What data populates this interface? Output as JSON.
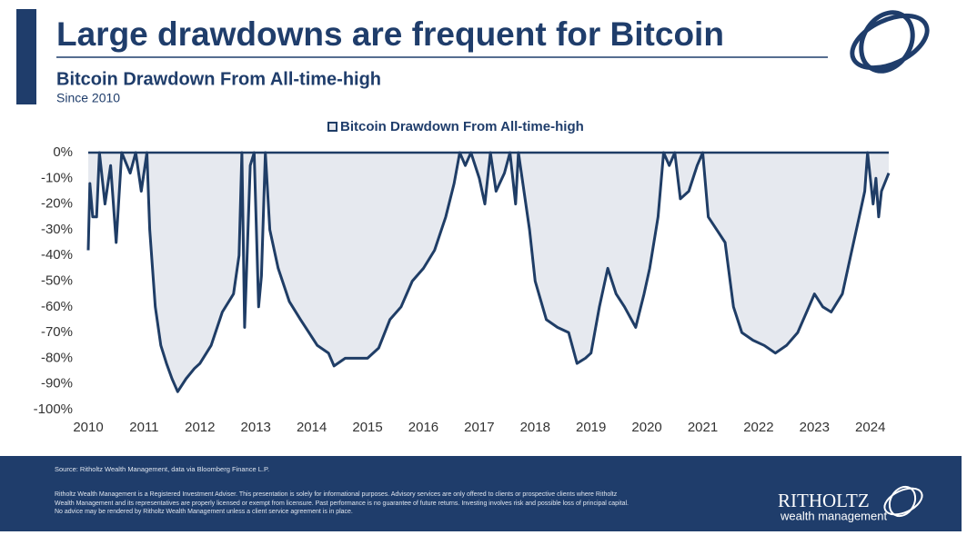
{
  "chart_data": {
    "type": "area",
    "title": "Large drawdowns are frequent for Bitcoin",
    "subtitle": "Bitcoin Drawdown From All-time-high",
    "note": "Since 2010",
    "xlim": [
      2010,
      2024.33
    ],
    "xticks": [
      2010,
      2011,
      2012,
      2013,
      2014,
      2015,
      2016,
      2017,
      2018,
      2019,
      2020,
      2021,
      2022,
      2023,
      2024
    ],
    "ylim": [
      -100,
      0
    ],
    "yticks": [
      {
        "value": 0,
        "label": "0%"
      },
      {
        "value": -10,
        "label": "-10%"
      },
      {
        "value": -20,
        "label": "-20%"
      },
      {
        "value": -30,
        "label": "-30%"
      },
      {
        "value": -40,
        "label": "-40%"
      },
      {
        "value": -50,
        "label": "-50%"
      },
      {
        "value": -60,
        "label": "-60%"
      },
      {
        "value": -70,
        "label": "-70%"
      },
      {
        "value": -80,
        "label": "-80%"
      },
      {
        "value": -90,
        "label": "-90%"
      },
      {
        "value": -100,
        "label": "-100%"
      }
    ],
    "grid": false,
    "legend": "top",
    "x": [
      2010.0,
      2010.03,
      2010.08,
      2010.15,
      2010.2,
      2010.3,
      2010.4,
      2010.5,
      2010.6,
      2010.75,
      2010.85,
      2010.95,
      2011.05,
      2011.1,
      2011.2,
      2011.3,
      2011.4,
      2011.5,
      2011.6,
      2011.75,
      2011.9,
      2012.0,
      2012.2,
      2012.4,
      2012.6,
      2012.7,
      2012.75,
      2012.8,
      2012.9,
      2012.97,
      2013.05,
      2013.1,
      2013.17,
      2013.25,
      2013.4,
      2013.6,
      2013.8,
      2013.95,
      2014.1,
      2014.3,
      2014.4,
      2014.6,
      2014.8,
      2015.0,
      2015.2,
      2015.4,
      2015.6,
      2015.8,
      2016.0,
      2016.2,
      2016.4,
      2016.55,
      2016.65,
      2016.75,
      2016.85,
      2017.0,
      2017.1,
      2017.2,
      2017.3,
      2017.45,
      2017.55,
      2017.65,
      2017.7,
      2017.9,
      2018.0,
      2018.2,
      2018.4,
      2018.6,
      2018.75,
      2018.9,
      2019.0,
      2019.15,
      2019.3,
      2019.45,
      2019.6,
      2019.8,
      2019.95,
      2020.05,
      2020.2,
      2020.3,
      2020.4,
      2020.5,
      2020.6,
      2020.75,
      2020.9,
      2021.0,
      2021.1,
      2021.25,
      2021.4,
      2021.55,
      2021.7,
      2021.9,
      2022.1,
      2022.3,
      2022.5,
      2022.7,
      2022.9,
      2023.0,
      2023.15,
      2023.3,
      2023.5,
      2023.65,
      2023.8,
      2023.9,
      2023.95,
      2024.05,
      2024.1,
      2024.15,
      2024.2,
      2024.33
    ],
    "series": [
      {
        "name": "Bitcoin Drawdown From All-time-high",
        "color": "#1f3d66",
        "fill": "#e6e9ef",
        "values": [
          -38,
          -12,
          -25,
          -25,
          0,
          -20,
          -5,
          -35,
          0,
          -8,
          0,
          -15,
          0,
          -30,
          -60,
          -75,
          -82,
          -88,
          -93,
          -88,
          -84,
          -82,
          -75,
          -62,
          -55,
          -40,
          0,
          -68,
          -5,
          0,
          -60,
          -48,
          0,
          -30,
          -45,
          -58,
          -65,
          -70,
          -75,
          -78,
          -83,
          -80,
          -80,
          -80,
          -76,
          -65,
          -60,
          -50,
          -45,
          -38,
          -25,
          -12,
          0,
          -5,
          0,
          -10,
          -20,
          0,
          -15,
          -8,
          0,
          -20,
          0,
          -30,
          -50,
          -65,
          -68,
          -70,
          -82,
          -80,
          -78,
          -60,
          -45,
          -55,
          -60,
          -68,
          -55,
          -45,
          -25,
          0,
          -5,
          0,
          -18,
          -15,
          -5,
          0,
          -25,
          -30,
          -35,
          -60,
          -70,
          -73,
          -75,
          -78,
          -75,
          -70,
          -60,
          -55,
          -60,
          -62,
          -55,
          -40,
          -25,
          -15,
          0,
          -20,
          -10,
          -25,
          -15,
          -8
        ]
      }
    ]
  },
  "footer": {
    "source": "Source: Ritholtz Wealth Management, data via Bloomberg Finance L.P.",
    "disclaimer": "Ritholtz Wealth Management is a Registered Investment Adviser. This presentation is solely for informational purposes. Advisory services are only offered to clients or prospective clients where Ritholtz Wealth Management and its representatives are properly licensed or exempt from licensure. Past performance is no guarantee of future returns. Investing involves risk and possible loss of principal capital. No advice may be rendered by Ritholtz Wealth Management unless a client service agreement is in place.",
    "brand": "RITHOLTZ",
    "brand_sub": "wealth management"
  }
}
